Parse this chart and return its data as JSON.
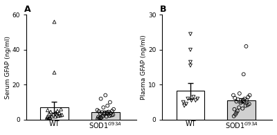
{
  "panel_A": {
    "title": "A",
    "ylabel": "Serum GFAP (ng/ml)",
    "ylim": [
      0,
      60
    ],
    "yticks": [
      0,
      20,
      40,
      60
    ],
    "groups": [
      "WT",
      "SOD1$^{G93A}$"
    ],
    "bar_means": [
      7.0,
      4.2
    ],
    "bar_sems": [
      3.2,
      1.0
    ],
    "bar_colors": [
      "white",
      "#d0d0d0"
    ],
    "wt_points": [
      0.5,
      0.8,
      1.0,
      1.2,
      1.5,
      1.8,
      2.0,
      2.2,
      2.5,
      2.8,
      3.0,
      3.2,
      3.5,
      3.8,
      4.0,
      4.5,
      5.0,
      5.5,
      6.0,
      27.0,
      56.0
    ],
    "sod1_points": [
      0.5,
      0.8,
      1.0,
      1.2,
      1.5,
      1.8,
      2.0,
      2.2,
      2.5,
      2.8,
      3.0,
      3.2,
      3.5,
      3.8,
      4.0,
      4.2,
      4.5,
      4.8,
      5.0,
      5.5,
      6.0,
      7.0,
      8.0,
      10.0,
      12.0,
      14.0
    ],
    "wt_marker": "^",
    "sod1_marker": "o"
  },
  "panel_B": {
    "title": "B",
    "ylabel": "Plasma GFAP (ng/ml)",
    "ylim": [
      0,
      30
    ],
    "yticks": [
      0,
      10,
      20,
      30
    ],
    "groups": [
      "WT",
      "SOD1$^{G93A}$"
    ],
    "bar_means": [
      8.2,
      5.5
    ],
    "bar_sems": [
      2.3,
      0.6
    ],
    "bar_colors": [
      "white",
      "#d0d0d0"
    ],
    "wt_points": [
      4.0,
      4.5,
      5.0,
      5.5,
      5.5,
      6.0,
      6.0,
      6.5,
      15.5,
      16.5,
      20.0,
      24.5
    ],
    "sod1_points": [
      1.0,
      1.5,
      2.0,
      2.5,
      3.0,
      3.2,
      3.5,
      4.0,
      4.2,
      4.5,
      4.8,
      5.0,
      5.2,
      5.5,
      5.5,
      5.8,
      6.0,
      6.2,
      6.5,
      7.0,
      7.0,
      7.5,
      13.0,
      21.0
    ],
    "wt_marker": "v",
    "sod1_marker": "o"
  },
  "figure_bg": "white",
  "marker_size": 3.5,
  "bar_width": 0.55,
  "bar_edgecolor": "black",
  "capsize": 3,
  "errorbar_linewidth": 1.0,
  "jitter_wt_A": [
    -0.15,
    -0.12,
    -0.1,
    -0.08,
    -0.14,
    0.02,
    -0.05,
    0.08,
    0.12,
    0.15,
    -0.02,
    0.05,
    -0.1,
    0.1,
    0.03,
    -0.07,
    0.06,
    -0.13,
    0.13,
    0.0,
    0.0
  ],
  "jitter_sod1_A": [
    -0.15,
    -0.12,
    -0.1,
    -0.08,
    -0.14,
    0.02,
    -0.05,
    0.08,
    0.12,
    0.15,
    -0.02,
    0.05,
    -0.1,
    0.1,
    0.03,
    -0.07,
    0.06,
    -0.13,
    0.13,
    -0.16,
    0.16,
    -0.04,
    0.04,
    0.09,
    -0.09,
    0.0
  ],
  "jitter_wt_B": [
    -0.12,
    -0.08,
    -0.14,
    0.02,
    0.1,
    0.14,
    -0.05,
    0.06,
    0.0,
    0.0,
    0.0,
    0.0
  ],
  "jitter_sod1_B": [
    -0.15,
    -0.12,
    -0.1,
    -0.08,
    -0.14,
    0.02,
    -0.05,
    0.08,
    0.12,
    0.15,
    -0.02,
    0.05,
    -0.1,
    0.1,
    0.03,
    -0.07,
    0.06,
    -0.13,
    0.13,
    -0.16,
    0.16,
    -0.04,
    0.04,
    0.09
  ]
}
